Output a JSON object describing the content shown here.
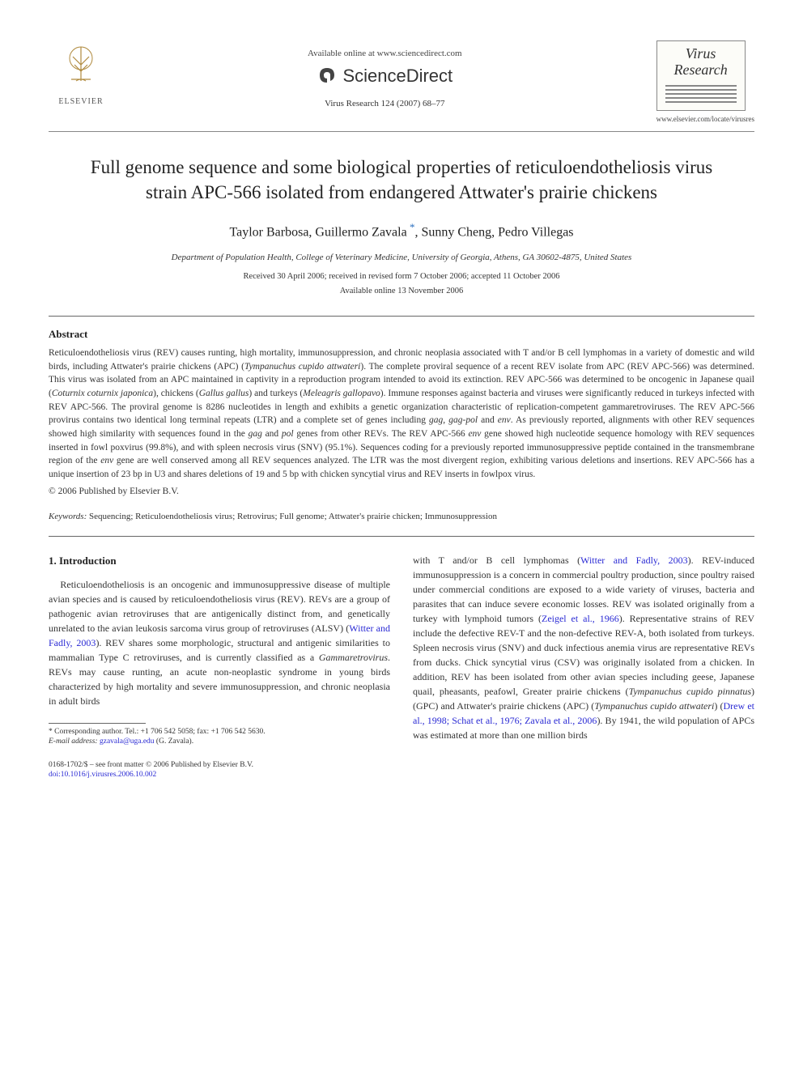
{
  "header": {
    "available_online": "Available online at www.sciencedirect.com",
    "sciencedirect": "ScienceDirect",
    "journal_ref": "Virus Research 124 (2007) 68–77",
    "elsevier_label": "ELSEVIER",
    "journal_cover_title_line1": "Virus",
    "journal_cover_title_line2": "Research",
    "journal_url": "www.elsevier.com/locate/virusres"
  },
  "article": {
    "title": "Full genome sequence and some biological properties of reticuloendotheliosis virus strain APC-566 isolated from endangered Attwater's prairie chickens",
    "authors_pre": "Taylor Barbosa, Guillermo Zavala",
    "authors_post": ", Sunny Cheng, Pedro Villegas",
    "affiliation": "Department of Population Health, College of Veterinary Medicine, University of Georgia, Athens, GA 30602-4875, United States",
    "dates_line1": "Received 30 April 2006; received in revised form 7 October 2006; accepted 11 October 2006",
    "dates_line2": "Available online 13 November 2006"
  },
  "abstract": {
    "heading": "Abstract",
    "body_html": "Reticuloendotheliosis virus (REV) causes runting, high mortality, immunosuppression, and chronic neoplasia associated with T and/or B cell lymphomas in a variety of domestic and wild birds, including Attwater's prairie chickens (APC) (<span class=\"italic\">Tympanuchus cupido attwateri</span>). The complete proviral sequence of a recent REV isolate from APC (REV APC-566) was determined. This virus was isolated from an APC maintained in captivity in a reproduction program intended to avoid its extinction. REV APC-566 was determined to be oncogenic in Japanese quail (<span class=\"italic\">Coturnix coturnix japonica</span>), chickens (<span class=\"italic\">Gallus gallus</span>) and turkeys (<span class=\"italic\">Meleagris gallopavo</span>). Immune responses against bacteria and viruses were significantly reduced in turkeys infected with REV APC-566. The proviral genome is 8286 nucleotides in length and exhibits a genetic organization characteristic of replication-competent gammaretroviruses. The REV APC-566 provirus contains two identical long terminal repeats (LTR) and a complete set of genes including <span class=\"italic\">gag</span>, <span class=\"italic\">gag-pol</span> and <span class=\"italic\">env</span>. As previously reported, alignments with other REV sequences showed high similarity with sequences found in the <span class=\"italic\">gag</span> and <span class=\"italic\">pol</span> genes from other REVs. The REV APC-566 <span class=\"italic\">env</span> gene showed high nucleotide sequence homology with REV sequences inserted in fowl poxvirus (99.8%), and with spleen necrosis virus (SNV) (95.1%). Sequences coding for a previously reported immunosuppressive peptide contained in the transmembrane region of the <span class=\"italic\">env</span> gene are well conserved among all REV sequences analyzed. The LTR was the most divergent region, exhibiting various deletions and insertions. REV APC-566 has a unique insertion of 23 bp in U3 and shares deletions of 19 and 5 bp with chicken syncytial virus and REV inserts in fowlpox virus.",
    "copyright": "© 2006 Published by Elsevier B.V."
  },
  "keywords": {
    "label": "Keywords:",
    "list": "Sequencing; Reticuloendotheliosis virus; Retrovirus; Full genome; Attwater's prairie chicken; Immunosuppression"
  },
  "intro": {
    "heading": "1. Introduction",
    "col1_p1_html": "Reticuloendotheliosis is an oncogenic and immunosuppressive disease of multiple avian species and is caused by reticuloendotheliosis virus (REV). REVs are a group of pathogenic avian retroviruses that are antigenically distinct from, and genetically unrelated to the avian leukosis sarcoma virus group of retroviruses (ALSV) (<span class=\"blue-link\">Witter and Fadly, 2003</span>). REV shares some morphologic, structural and antigenic similarities to mammalian Type C retroviruses, and is currently classified as a <span class=\"italic\">Gammaretrovirus</span>. REVs may cause runting, an acute non-neoplastic syndrome in young birds characterized by high mortality and severe immunosuppression, and chronic neoplasia in adult birds",
    "col2_p1_html": "with T and/or B cell lymphomas (<span class=\"blue-link\">Witter and Fadly, 2003</span>). REV-induced immunosuppression is a concern in commercial poultry production, since poultry raised under commercial conditions are exposed to a wide variety of viruses, bacteria and parasites that can induce severe economic losses. REV was isolated originally from a turkey with lymphoid tumors (<span class=\"blue-link\">Zeigel et al., 1966</span>). Representative strains of REV include the defective REV-T and the non-defective REV-A, both isolated from turkeys. Spleen necrosis virus (SNV) and duck infectious anemia virus are representative REVs from ducks. Chick syncytial virus (CSV) was originally isolated from a chicken. In addition, REV has been isolated from other avian species including geese, Japanese quail, pheasants, peafowl, Greater prairie chickens (<span class=\"italic\">Tympanuchus cupido pinnatus</span>) (GPC) and Attwater's prairie chickens (APC) (<span class=\"italic\">Tympanuchus cupido attwateri</span>) (<span class=\"blue-link\">Drew et al., 1998; Schat et al., 1976; Zavala et al., 2006</span>). By 1941, the wild population of APCs was estimated at more than one million birds"
  },
  "footnote": {
    "corr_line": "* Corresponding author. Tel.: +1 706 542 5058; fax: +1 706 542 5630.",
    "email_label": "E-mail address:",
    "email_value": "gzavala@uga.edu",
    "email_name": "(G. Zavala)."
  },
  "footer": {
    "line1": "0168-1702/$ – see front matter © 2006 Published by Elsevier B.V.",
    "line2": "doi:10.1016/j.virusres.2006.10.002"
  },
  "colors": {
    "link_blue": "#2a2ad4",
    "text": "#333333",
    "rule": "#666666"
  }
}
